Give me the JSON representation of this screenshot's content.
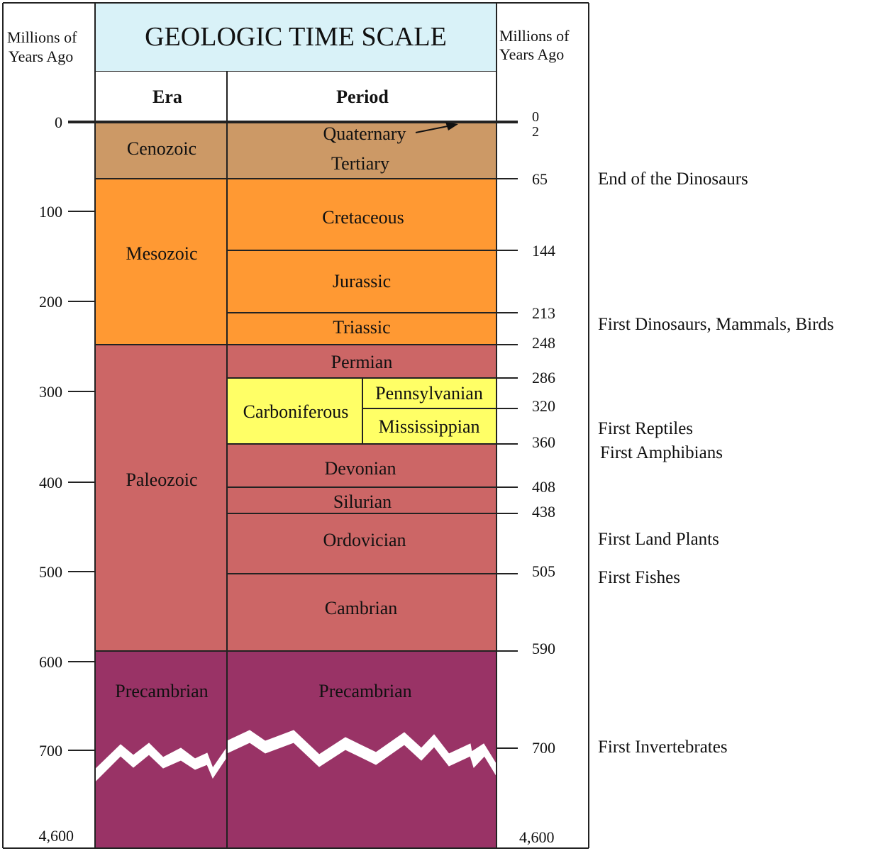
{
  "title": "GEOLOGIC TIME SCALE",
  "left_axis_label": [
    "Millions of",
    "Years Ago"
  ],
  "right_axis_label": [
    "Millions of",
    "Years Ago"
  ],
  "column_headers": {
    "era": "Era",
    "period": "Period"
  },
  "left_ticks": [
    "0",
    "100",
    "200",
    "300",
    "400",
    "500",
    "600",
    "700"
  ],
  "left_bottom": "4,600",
  "right_bottom": "4,600",
  "colors": {
    "header": "#d9f2f8",
    "cenozoic": "#cc9966",
    "mesozoic": "#ff9933",
    "paleozoic": "#cc6666",
    "carboniferous": "#ffff66",
    "precambrian": "#993366"
  },
  "eras": [
    {
      "name": "Cenozoic",
      "color": "cenozoic"
    },
    {
      "name": "Mesozoic",
      "color": "mesozoic"
    },
    {
      "name": "Paleozoic",
      "color": "paleozoic"
    },
    {
      "name": "Precambrian",
      "color": "precambrian"
    }
  ],
  "periods": [
    {
      "name": "Quaternary"
    },
    {
      "name": "Tertiary"
    },
    {
      "name": "Cretaceous"
    },
    {
      "name": "Jurassic"
    },
    {
      "name": "Triassic"
    },
    {
      "name": "Permian"
    },
    {
      "name": "Carboniferous"
    },
    {
      "name": "Pennsylvanian"
    },
    {
      "name": "Mississippian"
    },
    {
      "name": "Devonian"
    },
    {
      "name": "Silurian"
    },
    {
      "name": "Ordovician"
    },
    {
      "name": "Cambrian"
    },
    {
      "name": "Precambrian"
    }
  ],
  "boundary_ages": [
    "0",
    "2",
    "65",
    "144",
    "213",
    "248",
    "286",
    "320",
    "360",
    "408",
    "438",
    "505",
    "590",
    "700"
  ],
  "events": [
    {
      "text": "End of the Dinosaurs"
    },
    {
      "text": "First Dinosaurs, Mammals, Birds"
    },
    {
      "text": "First Reptiles"
    },
    {
      "text": "First Amphibians"
    },
    {
      "text": "First Land Plants"
    },
    {
      "text": "First Fishes"
    },
    {
      "text": "First Invertebrates"
    }
  ]
}
